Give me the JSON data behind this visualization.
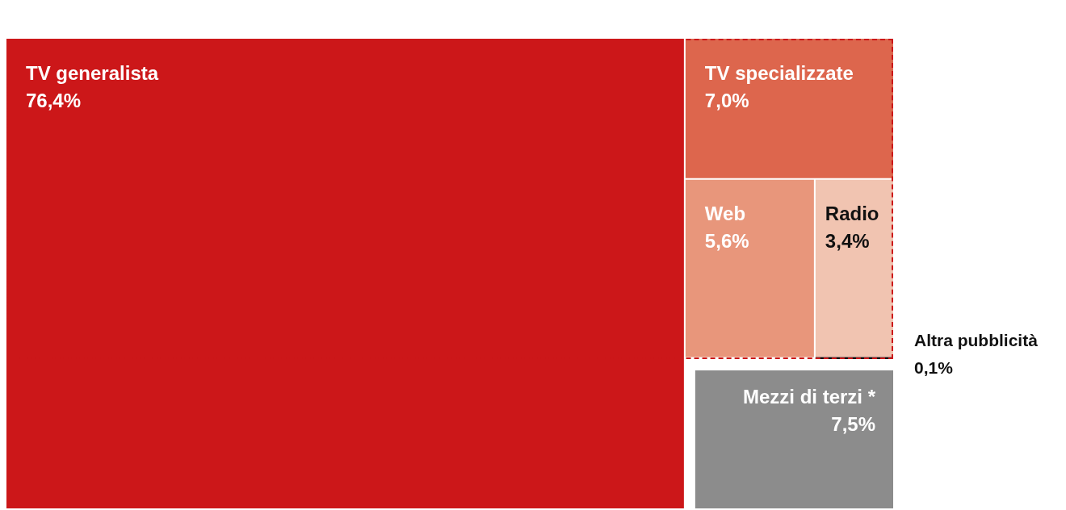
{
  "chart_data": {
    "type": "other",
    "categories": [
      "TV generalista",
      "TV specializzate",
      "Web",
      "Radio",
      "Altra pubblicità",
      "Mezzi di terzi *"
    ],
    "values": [
      76.4,
      7.0,
      5.6,
      3.4,
      0.1,
      7.5
    ],
    "value_labels": [
      "76,4%",
      "7,0%",
      "5,6%",
      "3,4%",
      "0,1%",
      "7,5%"
    ],
    "colors": [
      "#cc1719",
      "#dd664d",
      "#e8967b",
      "#f1c4b1",
      "#111111",
      "#8c8c8c"
    ]
  }
}
